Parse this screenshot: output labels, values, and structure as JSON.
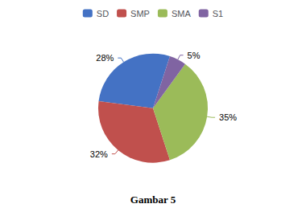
{
  "chart_data": {
    "type": "pie",
    "title": "Gambar 5",
    "categories": [
      "SD",
      "SMP",
      "SMA",
      "S1"
    ],
    "values": [
      28,
      32,
      35,
      5
    ],
    "value_labels": [
      "28%",
      "32%",
      "35%",
      "5%"
    ],
    "colors": [
      "#4472C4",
      "#C0504D",
      "#9BBB59",
      "#8064A2"
    ],
    "legend": "top",
    "data_labels": true
  }
}
